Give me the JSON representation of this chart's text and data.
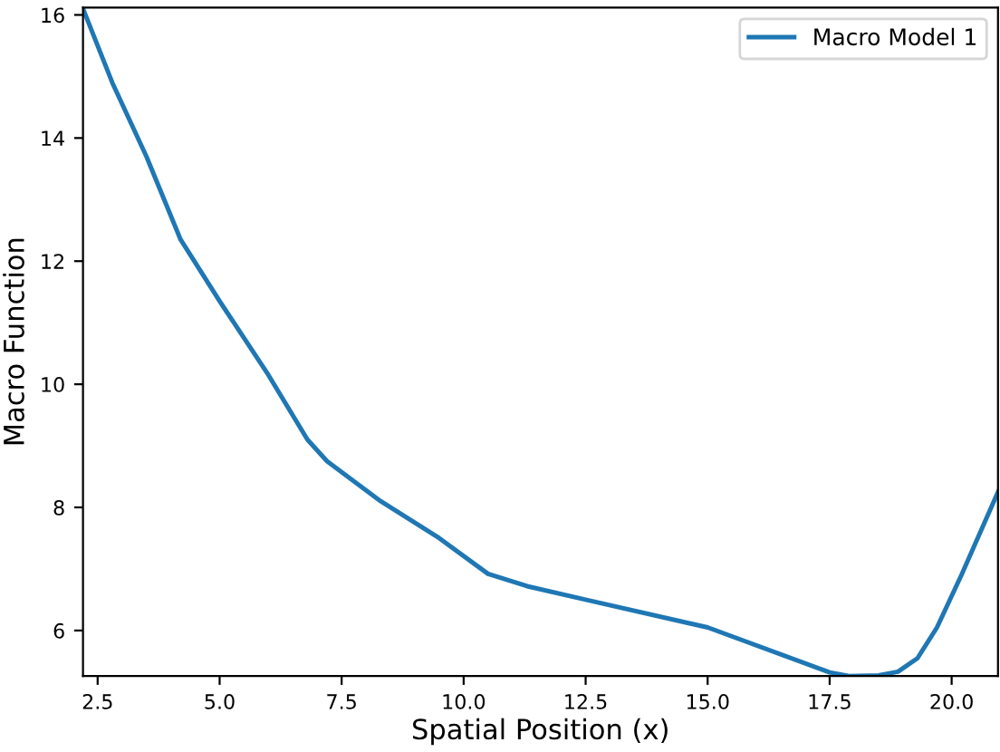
{
  "chart_data": {
    "type": "line",
    "xlabel": "Spatial Position (x)",
    "ylabel": "Macro Function",
    "xlim": [
      2.2,
      20.95
    ],
    "ylim": [
      5.26,
      16.12
    ],
    "xticks": [
      {
        "value": 2.5,
        "label": "2.5"
      },
      {
        "value": 5,
        "label": "5.0"
      },
      {
        "value": 7.5,
        "label": "7.5"
      },
      {
        "value": 10,
        "label": "10.0"
      },
      {
        "value": 12.5,
        "label": "12.5"
      },
      {
        "value": 15,
        "label": "15.0"
      },
      {
        "value": 17.5,
        "label": "17.5"
      },
      {
        "value": 20,
        "label": "20.0"
      }
    ],
    "yticks": [
      6,
      8,
      10,
      12,
      14,
      16
    ],
    "grid": false,
    "legend": "top right",
    "x": [
      2.2,
      2.8,
      3.5,
      4.2,
      5.0,
      6.0,
      6.8,
      7.2,
      8.3,
      9.5,
      10.5,
      11.3,
      12.5,
      15.0,
      17.5,
      17.9,
      18.5,
      18.9,
      19.3,
      19.7,
      20.2,
      20.95
    ],
    "series": [
      {
        "name": "Macro Model 1",
        "color": "#1f77b4",
        "values": [
          16.1,
          14.9,
          13.7,
          12.35,
          11.35,
          10.15,
          9.1,
          8.75,
          8.1,
          7.5,
          6.92,
          6.72,
          6.5,
          6.05,
          5.32,
          5.26,
          5.27,
          5.33,
          5.55,
          6.05,
          6.9,
          8.25
        ]
      }
    ]
  }
}
